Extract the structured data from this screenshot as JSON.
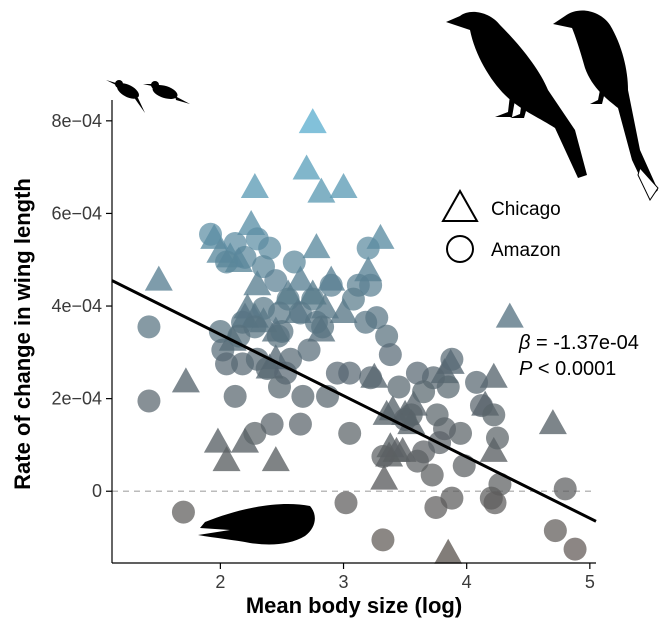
{
  "chart_data": {
    "type": "scatter",
    "title": "",
    "xlabel": "Mean body size (log)",
    "ylabel": "Rate of change in wing length",
    "xlim": [
      1.12,
      5.05
    ],
    "ylim": [
      -0.000155,
      0.000845
    ],
    "x_ticks": [
      2,
      3,
      4,
      5
    ],
    "x_tick_labels": [
      "2",
      "3",
      "4",
      "5"
    ],
    "y_ticks": [
      0,
      0.0002,
      0.0004,
      0.0006,
      0.0008
    ],
    "y_tick_labels": [
      "0",
      "2e−04",
      "4e−04",
      "6e−04",
      "8e−04"
    ],
    "zero_line": {
      "y": 0,
      "style": "dashed",
      "color": "#bbbbbb"
    },
    "grid": false,
    "legend": {
      "position": "right",
      "items": [
        {
          "label": "Chicago",
          "shape": "triangle"
        },
        {
          "label": "Amazon",
          "shape": "circle"
        }
      ]
    },
    "color_scale": {
      "low": "#5f5752",
      "mid": "#576873",
      "high": "#5fb0d0",
      "range": [
        -0.00015,
        0.0008
      ]
    },
    "fit_line": {
      "x": [
        1.12,
        5.05
      ],
      "y": [
        0.000455,
        -6.5e-05
      ],
      "color": "#000000"
    },
    "annotation": {
      "beta_symbol": "β",
      "beta_value": " = -1.37e-04",
      "p_symbol": "P",
      "p_value": " < 0.0001"
    },
    "series": [
      {
        "name": "Chicago",
        "marker": "triangle",
        "points": [
          [
            2.75,
            0.000795
          ],
          [
            2.7,
            0.000695
          ],
          [
            2.28,
            0.000655
          ],
          [
            2.82,
            0.000645
          ],
          [
            3.0,
            0.000655
          ],
          [
            2.25,
            0.000575
          ],
          [
            1.95,
            0.000545
          ],
          [
            3.3,
            0.000545
          ],
          [
            2.0,
            0.000515
          ],
          [
            2.08,
            0.000505
          ],
          [
            2.15,
            0.000495
          ],
          [
            2.78,
            0.000525
          ],
          [
            2.65,
            0.000455
          ],
          [
            2.9,
            0.000455
          ],
          [
            3.2,
            0.000475
          ],
          [
            1.5,
            0.000455
          ],
          [
            2.3,
            0.000445
          ],
          [
            2.55,
            0.000425
          ],
          [
            2.75,
            0.000425
          ],
          [
            2.22,
            0.000395
          ],
          [
            2.85,
            0.000395
          ],
          [
            2.2,
            0.000375
          ],
          [
            2.28,
            0.000375
          ],
          [
            2.35,
            0.000365
          ],
          [
            2.63,
            0.000385
          ],
          [
            3.0,
            0.000385
          ],
          [
            4.35,
            0.000375
          ],
          [
            2.45,
            0.000345
          ],
          [
            2.82,
            0.000345
          ],
          [
            2.1,
            0.000325
          ],
          [
            2.4,
            0.000265
          ],
          [
            2.45,
            0.000285
          ],
          [
            3.87,
            0.000275
          ],
          [
            3.82,
            0.000255
          ],
          [
            4.22,
            0.000245
          ],
          [
            3.25,
            0.000245
          ],
          [
            1.72,
            0.000235
          ],
          [
            3.35,
            0.000165
          ],
          [
            3.4,
            0.000175
          ],
          [
            3.5,
            0.000165
          ],
          [
            3.57,
            0.000185
          ],
          [
            3.55,
            0.000145
          ],
          [
            4.15,
            0.000185
          ],
          [
            4.7,
            0.000145
          ],
          [
            1.98,
            0.000105
          ],
          [
            2.2,
            0.000105
          ],
          [
            3.38,
            9.5e-05
          ],
          [
            3.43,
            8.5e-05
          ],
          [
            3.48,
            8.5e-05
          ],
          [
            3.37,
            7.5e-05
          ],
          [
            4.22,
            8.5e-05
          ],
          [
            2.05,
            6.5e-05
          ],
          [
            2.45,
            6.5e-05
          ],
          [
            3.33,
            2.5e-05
          ],
          [
            3.85,
            -0.000135
          ]
        ]
      },
      {
        "name": "Amazon",
        "points": [
          [
            1.92,
            0.000555
          ],
          [
            2.3,
            0.000545
          ],
          [
            2.12,
            0.000535
          ],
          [
            2.4,
            0.000525
          ],
          [
            2.05,
            0.000495
          ],
          [
            2.2,
            0.000505
          ],
          [
            2.35,
            0.000485
          ],
          [
            2.6,
            0.000495
          ],
          [
            3.2,
            0.000525
          ],
          [
            3.12,
            0.000445
          ],
          [
            2.45,
            0.000455
          ],
          [
            2.9,
            0.000445
          ],
          [
            3.22,
            0.000445
          ],
          [
            2.55,
            0.000415
          ],
          [
            2.75,
            0.000415
          ],
          [
            3.08,
            0.000415
          ],
          [
            3.27,
            0.000375
          ],
          [
            2.35,
            0.000395
          ],
          [
            2.48,
            0.000385
          ],
          [
            2.65,
            0.000385
          ],
          [
            2.0,
            0.000345
          ],
          [
            2.18,
            0.000365
          ],
          [
            2.28,
            0.000355
          ],
          [
            3.18,
            0.000365
          ],
          [
            1.42,
            0.000355
          ],
          [
            2.02,
            0.000305
          ],
          [
            2.15,
            0.000335
          ],
          [
            2.47,
            0.000335
          ],
          [
            2.78,
            0.000365
          ],
          [
            2.83,
            0.000355
          ],
          [
            2.5,
            0.000345
          ],
          [
            3.35,
            0.000335
          ],
          [
            2.05,
            0.000275
          ],
          [
            2.18,
            0.000275
          ],
          [
            2.3,
            0.000285
          ],
          [
            2.57,
            0.000285
          ],
          [
            2.72,
            0.000305
          ],
          [
            3.38,
            0.000295
          ],
          [
            2.38,
            0.000265
          ],
          [
            2.53,
            0.000255
          ],
          [
            2.95,
            0.000255
          ],
          [
            3.05,
            0.000255
          ],
          [
            3.22,
            0.000245
          ],
          [
            3.6,
            0.000255
          ],
          [
            3.73,
            0.000245
          ],
          [
            3.88,
            0.000285
          ],
          [
            2.12,
            0.000205
          ],
          [
            2.48,
            0.000225
          ],
          [
            2.67,
            0.000205
          ],
          [
            2.87,
            0.000205
          ],
          [
            1.42,
            0.000195
          ],
          [
            3.45,
            0.000225
          ],
          [
            3.65,
            0.000215
          ],
          [
            3.85,
            0.000225
          ],
          [
            4.08,
            0.000235
          ],
          [
            4.12,
            0.000185
          ],
          [
            4.22,
            0.000165
          ],
          [
            2.42,
            0.000145
          ],
          [
            2.28,
            0.000125
          ],
          [
            2.65,
            0.000145
          ],
          [
            3.05,
            0.000125
          ],
          [
            3.5,
            0.000155
          ],
          [
            3.55,
            0.000165
          ],
          [
            3.76,
            0.000165
          ],
          [
            3.82,
            0.000135
          ],
          [
            3.95,
            0.000125
          ],
          [
            3.32,
            7.5e-05
          ],
          [
            3.65,
            8.5e-05
          ],
          [
            3.78,
            0.000105
          ],
          [
            4.25,
            0.000115
          ],
          [
            3.6,
            6.5e-05
          ],
          [
            3.98,
            5.5e-05
          ],
          [
            3.72,
            3.5e-05
          ],
          [
            4.27,
            1.5e-05
          ],
          [
            3.88,
            -1.5e-05
          ],
          [
            4.2,
            -1.5e-05
          ],
          [
            3.02,
            -2.5e-05
          ],
          [
            3.75,
            -3.5e-05
          ],
          [
            1.7,
            -4.5e-05
          ],
          [
            4.8,
            5e-06
          ],
          [
            4.23,
            -2.5e-05
          ],
          [
            3.32,
            -0.000105
          ],
          [
            4.72,
            -8.5e-05
          ],
          [
            4.88,
            -0.000125
          ]
        ]
      }
    ]
  }
}
